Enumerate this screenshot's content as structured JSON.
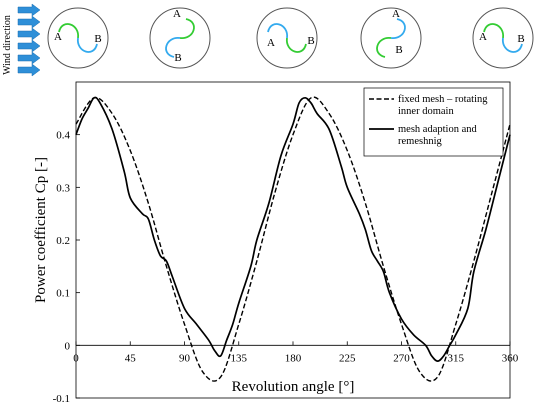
{
  "wind_label": "Wind direction",
  "rotor_diagrams": [
    {
      "blade_a": "A",
      "blade_b": "B"
    },
    {
      "blade_a": "A",
      "blade_b": "B"
    },
    {
      "blade_a": "A",
      "blade_b": "B"
    },
    {
      "blade_a": "A",
      "blade_b": "B"
    },
    {
      "blade_a": "A",
      "blade_b": "B"
    }
  ],
  "colors": {
    "blade_green": "#33cc33",
    "blade_blue": "#33aaee",
    "arrow_blue": "#2e8fd8"
  },
  "chart_data": {
    "type": "line",
    "xlabel": "Revolution angle [°]",
    "ylabel": "Power coefficient Cp [-]",
    "xlim": [
      0,
      360
    ],
    "ylim": [
      -0.1,
      0.5
    ],
    "xticks": [
      0,
      45,
      90,
      135,
      180,
      225,
      270,
      315,
      360
    ],
    "yticks": [
      -0.1,
      0,
      0.1,
      0.2,
      0.3,
      0.4
    ],
    "grid": false,
    "legend_position": "top-right",
    "series": [
      {
        "name": "fixed mesh – rotating inner domain",
        "style": "dashed",
        "x": [
          0,
          15,
          30,
          45,
          60,
          75,
          90,
          105,
          120,
          135,
          150,
          165,
          180,
          195,
          210,
          225,
          240,
          255,
          270,
          285,
          300,
          315,
          330,
          345,
          360
        ],
        "y": [
          0.42,
          0.47,
          0.44,
          0.37,
          0.27,
          0.15,
          0.04,
          -0.05,
          -0.06,
          0.04,
          0.16,
          0.29,
          0.4,
          0.47,
          0.44,
          0.37,
          0.27,
          0.15,
          0.04,
          -0.05,
          -0.06,
          0.04,
          0.16,
          0.29,
          0.42
        ]
      },
      {
        "name": "mesh adaption and remeshnig",
        "style": "solid",
        "x": [
          0,
          5,
          10,
          15,
          20,
          30,
          40,
          45,
          55,
          60,
          65,
          70,
          75,
          80,
          90,
          100,
          110,
          115,
          120,
          125,
          130,
          135,
          145,
          150,
          160,
          170,
          180,
          185,
          190,
          195,
          200,
          210,
          220,
          225,
          235,
          240,
          245,
          250,
          255,
          260,
          270,
          280,
          290,
          295,
          300,
          305,
          310,
          315,
          325,
          330,
          340,
          350,
          360
        ],
        "y": [
          0.4,
          0.43,
          0.45,
          0.47,
          0.46,
          0.41,
          0.33,
          0.28,
          0.25,
          0.24,
          0.2,
          0.17,
          0.16,
          0.13,
          0.07,
          0.04,
          0.01,
          -0.01,
          -0.02,
          0.01,
          0.04,
          0.08,
          0.15,
          0.2,
          0.27,
          0.36,
          0.42,
          0.46,
          0.47,
          0.46,
          0.44,
          0.41,
          0.34,
          0.3,
          0.25,
          0.22,
          0.18,
          0.16,
          0.14,
          0.1,
          0.05,
          0.02,
          0.0,
          -0.02,
          -0.03,
          -0.02,
          0.0,
          0.02,
          0.07,
          0.14,
          0.22,
          0.31,
          0.4
        ]
      }
    ]
  }
}
